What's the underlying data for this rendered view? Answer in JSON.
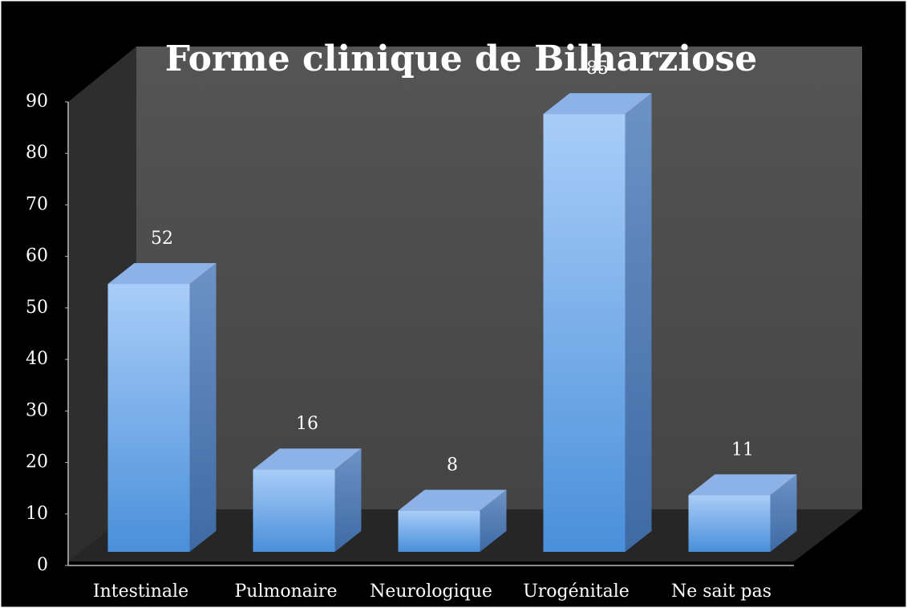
{
  "chart_data": {
    "type": "bar3d",
    "title": "Forme clinique de Bilharziose",
    "categories": [
      "Intestinale",
      "Pulmonaire",
      "Neurologique",
      "Urogénitale",
      "Ne sait pas"
    ],
    "values": [
      52,
      16,
      8,
      85,
      11
    ],
    "color": "#6fa6ec",
    "ylim": [
      0,
      90
    ],
    "yticks": [
      0,
      10,
      20,
      30,
      40,
      50,
      60,
      70,
      80,
      90
    ],
    "grid": false
  }
}
